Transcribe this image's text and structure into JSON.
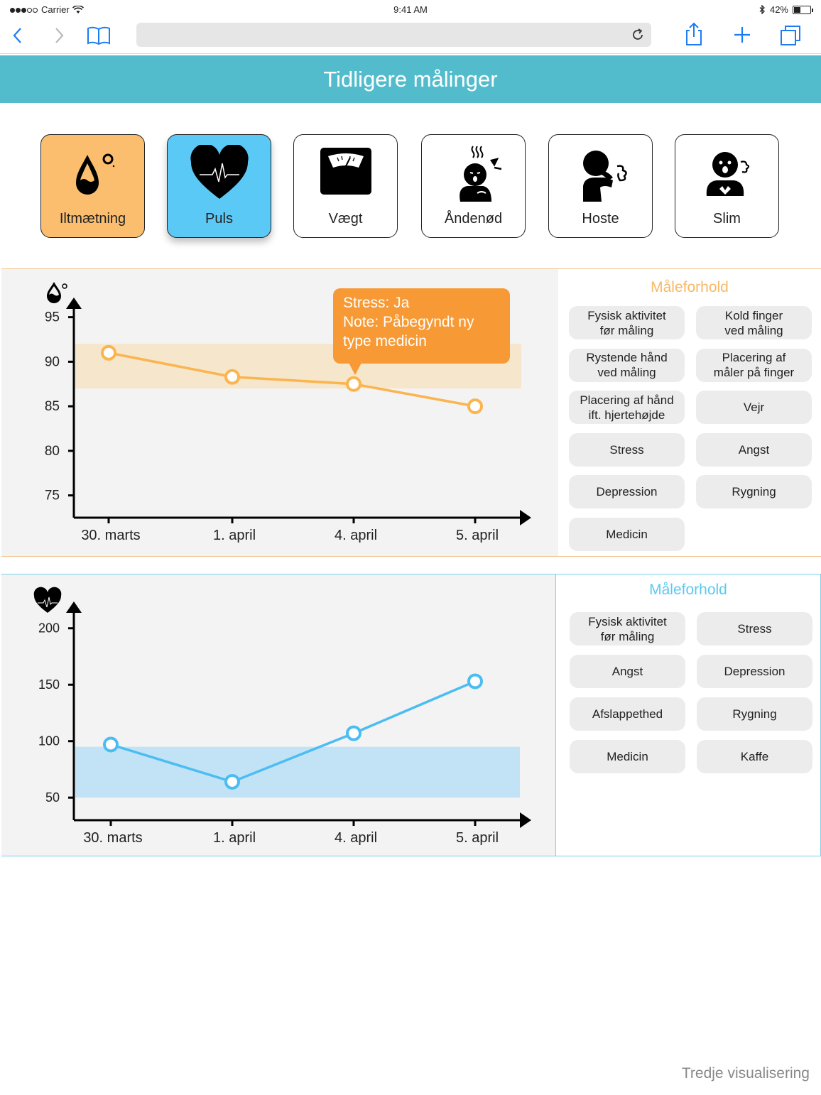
{
  "status": {
    "carrier": "Carrier",
    "time": "9:41 AM",
    "battery": "42%",
    "battery_level": 0.42
  },
  "header": {
    "title": "Tidligere målinger"
  },
  "categories": [
    {
      "label": "Iltmætning",
      "icon": "oxygen-drop-icon",
      "bg": "#fbbe6f"
    },
    {
      "label": "Puls",
      "icon": "heart-pulse-icon",
      "bg": "#5bc9f6"
    },
    {
      "label": "Vægt",
      "icon": "scale-icon",
      "bg": "#ffffff"
    },
    {
      "label": "Åndenød",
      "icon": "breathless-person-icon",
      "bg": "#ffffff"
    },
    {
      "label": "Hoste",
      "icon": "coughing-person-icon",
      "bg": "#ffffff"
    },
    {
      "label": "Slim",
      "icon": "phlegm-person-icon",
      "bg": "#ffffff"
    }
  ],
  "panel1": {
    "side_title": "Måleforhold",
    "chips": [
      "Fysisk aktivitet\nfør måling",
      "Kold finger\nved måling",
      "Rystende hånd\nved måling",
      "Placering af\nmåler på finger",
      "Placering af hånd\nift. hjertehøjde",
      "Vejr",
      "Stress",
      "Angst",
      "Depression",
      "Rygning",
      "Medicin"
    ],
    "tooltip": "Stress: Ja\nNote: Påbegyndt ny\ntype medicin"
  },
  "panel2": {
    "side_title": "Måleforhold",
    "chips": [
      "Fysisk aktivitet\nfør måling",
      "Stress",
      "Angst",
      "Depression",
      "Afslappethed",
      "Rygning",
      "Medicin",
      "Kaffe"
    ]
  },
  "footer": {
    "note": "Tredje visualisering"
  },
  "colors": {
    "orange": "#fbb44e",
    "orange_band": "#f6e6cb",
    "blue": "#4cbdf2",
    "blue_band": "#c2e3f5",
    "title_orange": "#f9b866",
    "title_blue": "#5bc9f0"
  },
  "chart_data": [
    {
      "type": "line",
      "categories": [
        "30. marts",
        "1. april",
        "4. april",
        "5. april"
      ],
      "values": [
        91,
        88.3,
        87.5,
        85
      ],
      "yticks": [
        95,
        90,
        85,
        80,
        75
      ],
      "ylim": [
        72.5,
        98
      ],
      "band": [
        87,
        92
      ]
    },
    {
      "type": "line",
      "categories": [
        "30. marts",
        "1. april",
        "4. april",
        "5. april"
      ],
      "values": [
        97,
        64,
        107,
        153
      ],
      "yticks": [
        200,
        150,
        100,
        50
      ],
      "ylim": [
        30,
        225
      ],
      "band": [
        50,
        95
      ]
    }
  ]
}
